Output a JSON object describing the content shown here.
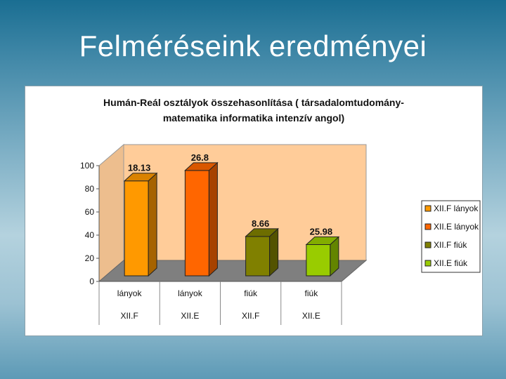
{
  "slide": {
    "title": "Felméréseink eredményei"
  },
  "chart_data": {
    "type": "bar",
    "title_lines": [
      "Humán-Reál osztályok összehasonlítása ( társadalomtudomány-",
      "matematika informatika intenzív angol)"
    ],
    "categories": [
      "lányok",
      "lányok",
      "fiúk",
      "fiúk"
    ],
    "groups": [
      "XII.F",
      "XII.E",
      "XII.F",
      "XII.E"
    ],
    "series": [
      {
        "name": "XII.F lányok",
        "color": "#ff9900",
        "index": 0,
        "value": 82,
        "label": "18.13"
      },
      {
        "name": "XII.E lányok",
        "color": "#ff6600",
        "index": 1,
        "value": 91,
        "label": "26.8"
      },
      {
        "name": "XII.F fiúk",
        "color": "#808000",
        "index": 2,
        "value": 34,
        "label": "8.66"
      },
      {
        "name": "XII.E fiúk",
        "color": "#99cc00",
        "index": 3,
        "value": 27,
        "label": "25.98"
      }
    ],
    "y_ticks": [
      "0",
      "20",
      "40",
      "60",
      "80",
      "100"
    ],
    "ylim": [
      0,
      100
    ],
    "walls_color": "#ffcc99",
    "floor_color": "#7f7f7f",
    "legend_position": "right",
    "grid": false
  }
}
